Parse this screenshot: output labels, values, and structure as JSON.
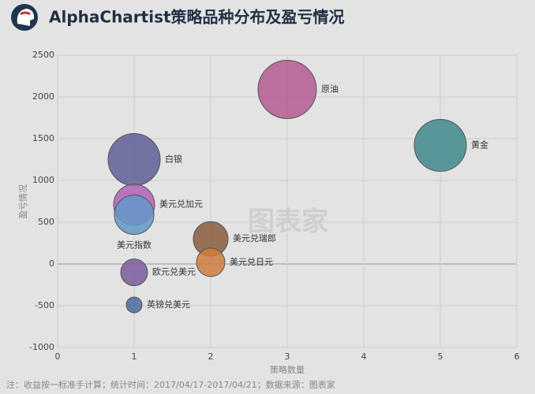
{
  "chart_data": {
    "type": "bubble",
    "title": "AlphaChartist策略品种分布及盈亏情况",
    "x_label": "策略数量",
    "y_label": "盈亏情况",
    "footnote": "注：收益按一标准手计算；统计时间：2017/04/17-2017/04/21；数据来源：图表家",
    "watermark": "图表家",
    "xlim": [
      0,
      6
    ],
    "xticks": [
      0,
      1,
      2,
      3,
      4,
      5,
      6
    ],
    "ylim": [
      -1000,
      2500
    ],
    "yticks": [
      -1000,
      -500,
      0,
      500,
      1000,
      1500,
      2000,
      2500
    ],
    "grid": true,
    "points": [
      {
        "label": "原油",
        "x": 3,
        "y": 2090,
        "size": 37,
        "color": "#b35a8f"
      },
      {
        "label": "黄金",
        "x": 5,
        "y": 1420,
        "size": 33,
        "color": "#3f8a8c"
      },
      {
        "label": "白银",
        "x": 1,
        "y": 1250,
        "size": 33,
        "color": "#5e5e98"
      },
      {
        "label": "美元兑加元",
        "x": 1,
        "y": 710,
        "size": 26,
        "color": "#b060b5"
      },
      {
        "label": "美元指数",
        "x": 1,
        "y": 590,
        "size": 25,
        "color": "#6398c8",
        "label_position": "below"
      },
      {
        "label": "美元兑瑞郎",
        "x": 2,
        "y": 300,
        "size": 22,
        "color": "#8a5c3c"
      },
      {
        "label": "美元兑日元",
        "x": 2,
        "y": 20,
        "size": 18,
        "color": "#d07c3e"
      },
      {
        "label": "欧元兑美元",
        "x": 1,
        "y": -100,
        "size": 17,
        "color": "#7a5c9c"
      },
      {
        "label": "英镑兑美元",
        "x": 1,
        "y": -490,
        "size": 10,
        "color": "#4a6a9c"
      }
    ]
  }
}
